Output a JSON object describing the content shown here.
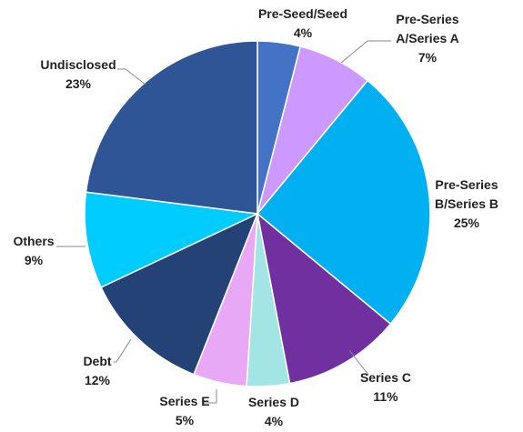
{
  "chart_data": {
    "type": "pie",
    "title": "",
    "slices": [
      {
        "label_lines": [
          "Pre-Seed/Seed"
        ],
        "value_text": "4%",
        "value": 4,
        "color": "#4472C4"
      },
      {
        "label_lines": [
          "Pre-Series",
          "A/Series A"
        ],
        "value_text": "7%",
        "value": 7,
        "color": "#CC99FF"
      },
      {
        "label_lines": [
          "Pre-Series",
          "B/Series B"
        ],
        "value_text": "25%",
        "value": 25,
        "color": "#00B0F0"
      },
      {
        "label_lines": [
          "Series C"
        ],
        "value_text": "11%",
        "value": 11,
        "color": "#7030A0"
      },
      {
        "label_lines": [
          "Series D"
        ],
        "value_text": "4%",
        "value": 4,
        "color": "#A3E4E5"
      },
      {
        "label_lines": [
          "Series E"
        ],
        "value_text": "5%",
        "value": 5,
        "color": "#E9A8F5"
      },
      {
        "label_lines": [
          "Debt"
        ],
        "value_text": "12%",
        "value": 12,
        "color": "#244276"
      },
      {
        "label_lines": [
          "Others"
        ],
        "value_text": "9%",
        "value": 9,
        "color": "#00CCFF"
      },
      {
        "label_lines": [
          "Undisclosed"
        ],
        "value_text": "23%",
        "value": 23,
        "color": "#2F5597"
      }
    ]
  }
}
